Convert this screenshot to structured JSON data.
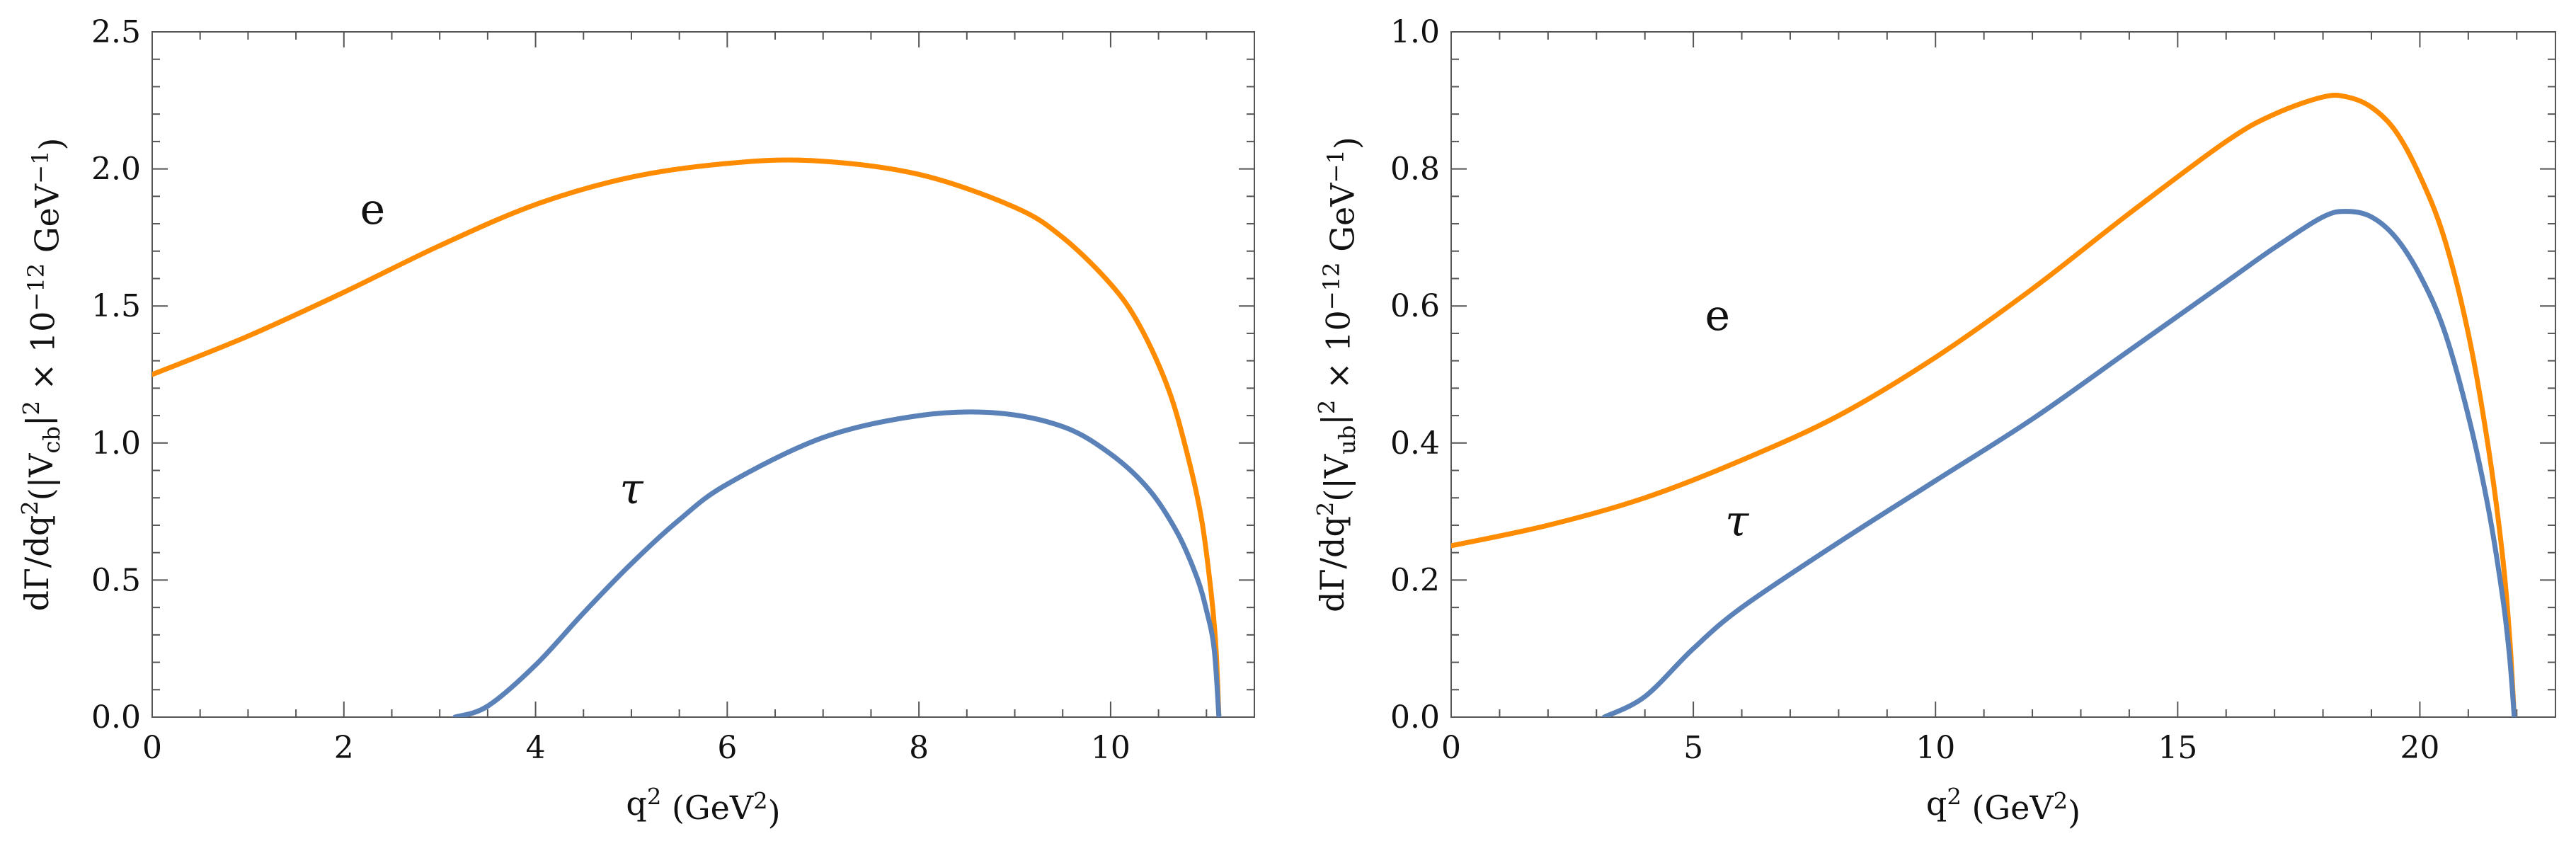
{
  "colors": {
    "e": "#ff8c00",
    "tau": "#5b82b8",
    "axis": "#555555"
  },
  "chart_data": [
    {
      "type": "line",
      "xlabel": "q² (GeV²)",
      "ylabel": "dΓ/dq²(|V_cb|² × 10⁻¹² GeV⁻¹)",
      "xlim": [
        0,
        11.5
      ],
      "ylim": [
        0,
        2.5
      ],
      "xticks": [
        0,
        2,
        4,
        6,
        8,
        10
      ],
      "xtick_labels": [
        "0",
        "2",
        "4",
        "6",
        "8",
        "10"
      ],
      "yticks": [
        0,
        0.5,
        1.0,
        1.5,
        2.0,
        2.5
      ],
      "ytick_labels": [
        "0.0",
        "0.5",
        "1.0",
        "1.5",
        "2.0",
        "2.5"
      ],
      "x_minor_step": 0.5,
      "y_minor_step": 0.1,
      "grid": false,
      "series": [
        {
          "name": "e",
          "color_key": "e",
          "x": [
            0,
            1,
            2,
            3,
            4,
            5,
            6,
            6.9,
            8,
            9,
            9.5,
            10,
            10.3,
            10.6,
            10.8,
            10.95,
            11.05,
            11.1,
            11.13
          ],
          "y": [
            1.25,
            1.39,
            1.55,
            1.72,
            1.87,
            1.97,
            2.02,
            2.03,
            1.98,
            1.86,
            1.75,
            1.58,
            1.43,
            1.2,
            0.96,
            0.72,
            0.45,
            0.25,
            0
          ]
        },
        {
          "name": "τ",
          "color_key": "tau",
          "x": [
            3.16,
            3.5,
            4,
            4.5,
            5,
            5.5,
            6,
            7,
            8,
            8.8,
            9.5,
            10,
            10.4,
            10.7,
            10.9,
            11.0,
            11.08,
            11.13
          ],
          "y": [
            0,
            0.04,
            0.19,
            0.38,
            0.56,
            0.72,
            0.85,
            1.02,
            1.1,
            1.11,
            1.06,
            0.96,
            0.83,
            0.67,
            0.51,
            0.39,
            0.25,
            0
          ]
        }
      ],
      "annotations": [
        {
          "text": "e",
          "x": 2.3,
          "y": 1.8
        },
        {
          "text": "τ",
          "x": 5.0,
          "y": 0.78
        }
      ]
    },
    {
      "type": "line",
      "xlabel": "q² (GeV²)",
      "ylabel": "dΓ/dq²(|V_ub|² × 10⁻¹² GeV⁻¹)",
      "xlim": [
        0,
        22.8
      ],
      "ylim": [
        0,
        1.0
      ],
      "xticks": [
        0,
        5,
        10,
        15,
        20
      ],
      "xtick_labels": [
        "0",
        "5",
        "10",
        "15",
        "20"
      ],
      "yticks": [
        0,
        0.2,
        0.4,
        0.6,
        0.8,
        1.0
      ],
      "ytick_labels": [
        "0.0",
        "0.2",
        "0.4",
        "0.6",
        "0.8",
        "1.0"
      ],
      "x_minor_step": 1,
      "y_minor_step": 0.04,
      "grid": false,
      "series": [
        {
          "name": "e",
          "color_key": "e",
          "x": [
            0,
            2,
            4,
            6,
            8,
            10,
            12,
            14,
            16,
            17,
            18,
            18.5,
            19,
            19.5,
            20,
            20.5,
            21,
            21.4,
            21.7,
            21.85,
            21.95
          ],
          "y": [
            0.25,
            0.28,
            0.32,
            0.375,
            0.44,
            0.525,
            0.625,
            0.735,
            0.84,
            0.88,
            0.905,
            0.905,
            0.89,
            0.855,
            0.79,
            0.7,
            0.56,
            0.4,
            0.24,
            0.12,
            0
          ]
        },
        {
          "name": "τ",
          "color_key": "tau",
          "x": [
            3.16,
            4,
            5,
            6,
            8,
            10,
            12,
            14,
            16,
            17,
            18,
            18.5,
            19,
            19.5,
            20,
            20.5,
            21,
            21.4,
            21.7,
            21.85,
            21.95
          ],
          "y": [
            0,
            0.03,
            0.1,
            0.16,
            0.255,
            0.345,
            0.435,
            0.535,
            0.635,
            0.685,
            0.73,
            0.738,
            0.73,
            0.7,
            0.645,
            0.565,
            0.44,
            0.31,
            0.18,
            0.09,
            0
          ]
        }
      ],
      "annotations": [
        {
          "text": "e",
          "x": 5.5,
          "y": 0.565
        },
        {
          "text": "τ",
          "x": 5.9,
          "y": 0.265
        }
      ]
    }
  ]
}
